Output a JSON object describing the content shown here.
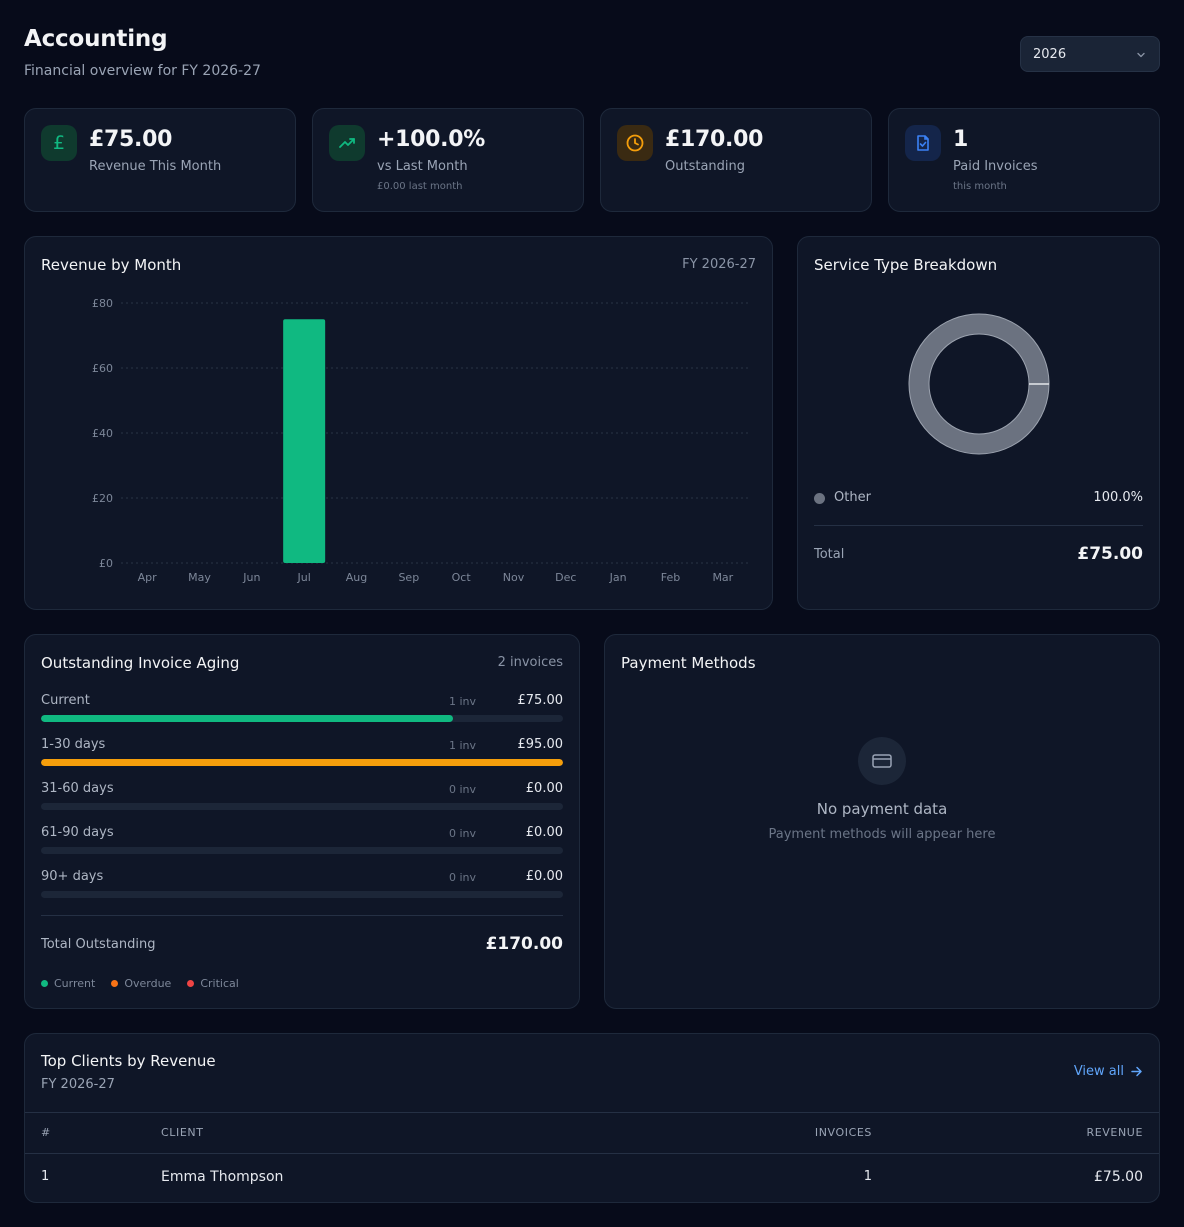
{
  "header": {
    "title": "Accounting",
    "subtitle": "Financial overview for FY 2026-27",
    "year_selected": "2026"
  },
  "stats": [
    {
      "value": "£75.00",
      "label": "Revenue This Month",
      "sub": "",
      "icon": "pound-icon",
      "color": "#10b981"
    },
    {
      "value": "+100.0%",
      "label": "vs Last Month",
      "sub": "£0.00 last month",
      "icon": "trending-up-icon",
      "color": "#10b981"
    },
    {
      "value": "£170.00",
      "label": "Outstanding",
      "sub": "",
      "icon": "clock-icon",
      "color": "#f59e0b"
    },
    {
      "value": "1",
      "label": "Paid Invoices",
      "sub": "this month",
      "icon": "file-check-icon",
      "color": "#3b82f6"
    }
  ],
  "revenue_chart": {
    "title": "Revenue by Month",
    "period": "FY 2026-27"
  },
  "chart_data": {
    "type": "bar",
    "categories": [
      "Apr",
      "May",
      "Jun",
      "Jul",
      "Aug",
      "Sep",
      "Oct",
      "Nov",
      "Dec",
      "Jan",
      "Feb",
      "Mar"
    ],
    "values": [
      0,
      0,
      0,
      75,
      0,
      0,
      0,
      0,
      0,
      0,
      0,
      0
    ],
    "ylim": [
      0,
      80
    ],
    "yticks": [
      "£0",
      "£20",
      "£40",
      "£60",
      "£80"
    ],
    "ytick_values": [
      0,
      20,
      40,
      60,
      80
    ],
    "bar_color": "#10b981",
    "grid": true
  },
  "service_breakdown": {
    "title": "Service Type Breakdown",
    "items": [
      {
        "name": "Other",
        "percent": "100.0%",
        "value": 100,
        "color": "#6b7280"
      }
    ],
    "total_label": "Total",
    "total_value": "£75.00"
  },
  "aging": {
    "title": "Outstanding Invoice Aging",
    "count_label": "2 invoices",
    "rows": [
      {
        "label": "Current",
        "inv": "1 inv",
        "amount": "£75.00",
        "fraction": 0.79,
        "color": "#10b981"
      },
      {
        "label": "1-30 days",
        "inv": "1 inv",
        "amount": "£95.00",
        "fraction": 1.0,
        "color": "#f59e0b"
      },
      {
        "label": "31-60 days",
        "inv": "0 inv",
        "amount": "£0.00",
        "fraction": 0,
        "color": "#f97316"
      },
      {
        "label": "61-90 days",
        "inv": "0 inv",
        "amount": "£0.00",
        "fraction": 0,
        "color": "#ef4444"
      },
      {
        "label": "90+ days",
        "inv": "0 inv",
        "amount": "£0.00",
        "fraction": 0,
        "color": "#dc2626"
      }
    ],
    "total_label": "Total Outstanding",
    "total_value": "£170.00",
    "legend": [
      {
        "label": "Current",
        "color": "#10b981"
      },
      {
        "label": "Overdue",
        "color": "#f97316"
      },
      {
        "label": "Critical",
        "color": "#ef4444"
      }
    ]
  },
  "payment_methods": {
    "title": "Payment Methods",
    "empty_title": "No payment data",
    "empty_sub": "Payment methods will appear here"
  },
  "top_clients": {
    "title": "Top Clients by Revenue",
    "subtitle": "FY 2026-27",
    "view_all": "View all",
    "columns": [
      "#",
      "CLIENT",
      "INVOICES",
      "REVENUE"
    ],
    "rows": [
      {
        "rank": "1",
        "client": "Emma Thompson",
        "invoices": "1",
        "revenue": "£75.00"
      }
    ]
  }
}
